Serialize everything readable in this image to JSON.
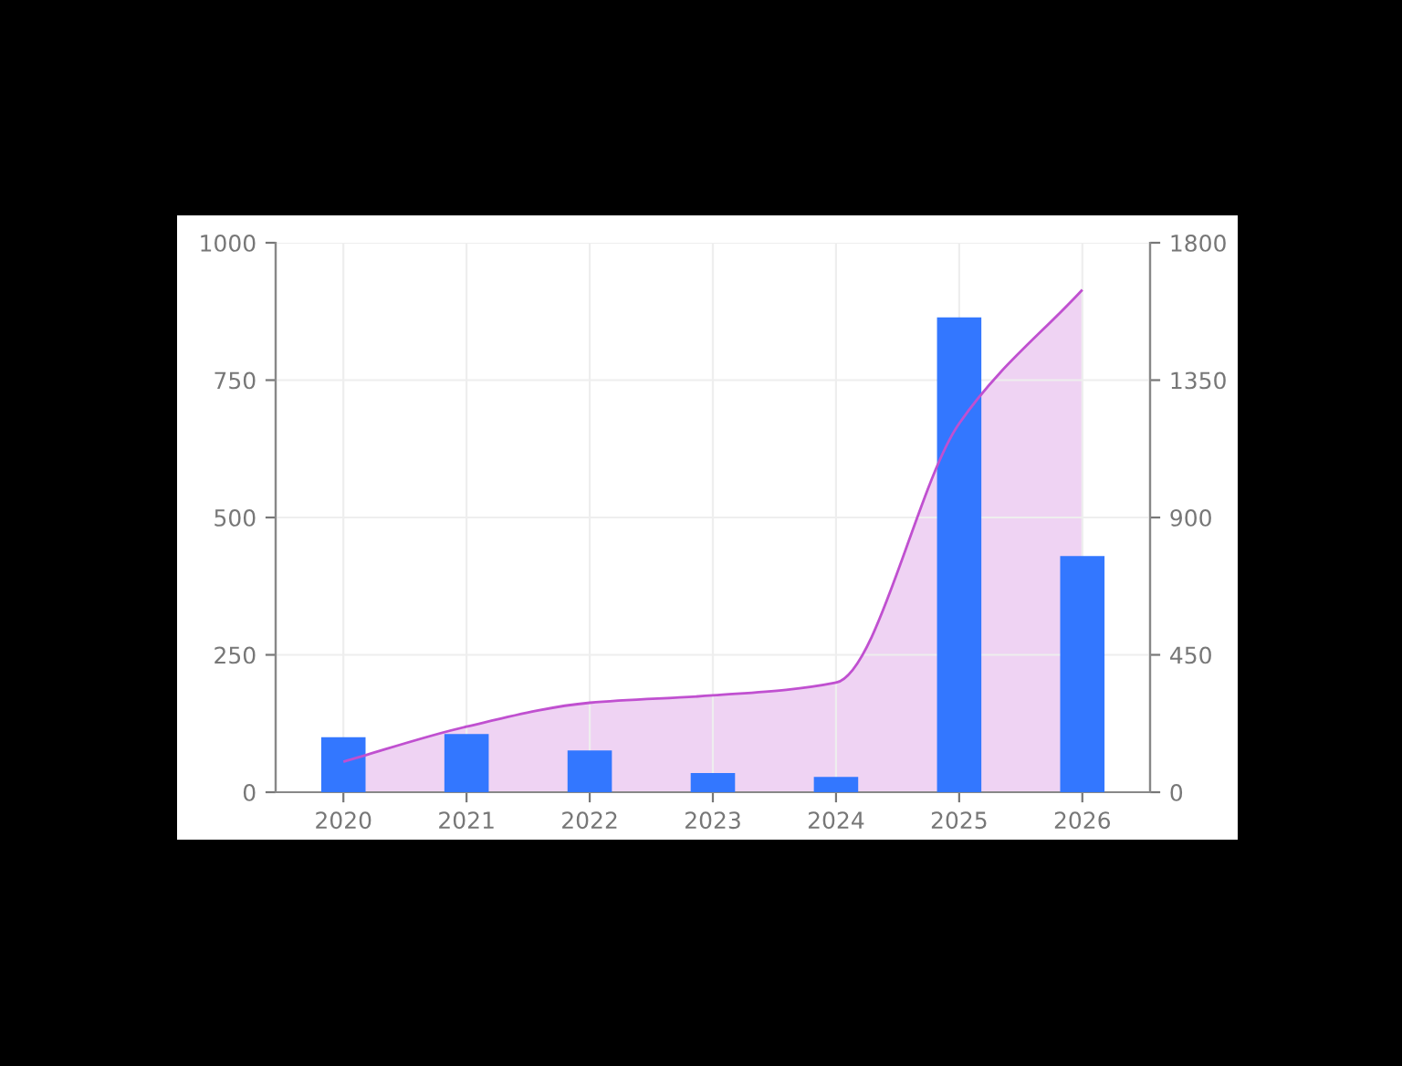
{
  "chart_data": {
    "type": "bar",
    "categories": [
      "2020",
      "2021",
      "2022",
      "2023",
      "2024",
      "2025",
      "2026"
    ],
    "series": [
      {
        "color": "#3377ff",
        "values": [
          100,
          106,
          76,
          35,
          28,
          864,
          430
        ]
      },
      {
        "type": "area",
        "axis": "y2",
        "color": "#c050d0",
        "values": [
          100,
          215,
          293,
          317,
          359,
          1208,
          1646
        ]
      }
    ],
    "ylim": [
      0,
      1000
    ],
    "yticks": [
      0,
      250,
      500,
      750,
      1000
    ],
    "y2lim": [
      0,
      1800
    ],
    "y2ticks": [
      0,
      450,
      900,
      1350,
      1800
    ],
    "grid": true
  }
}
